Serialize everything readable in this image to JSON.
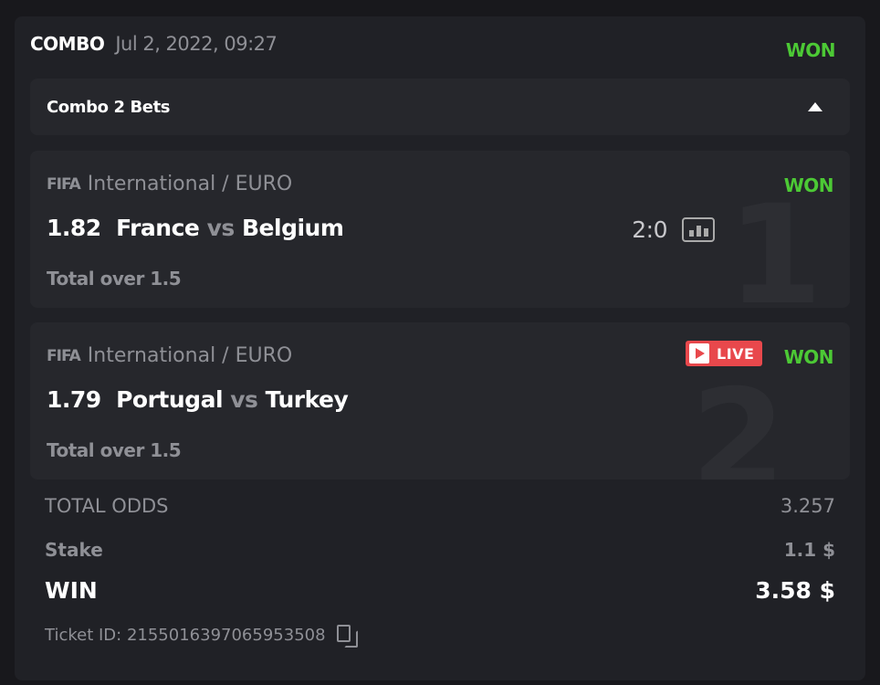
{
  "header": {
    "title": "COMBO",
    "date": "Jul 2, 2022, 09:27",
    "status": "WON"
  },
  "combo": {
    "label": "Combo 2 Bets"
  },
  "bets": [
    {
      "index": "1",
      "league": "International / EURO",
      "odds": "1.82",
      "home": "France",
      "vs": "vs",
      "away": "Belgium",
      "market": "Total over 1.5",
      "status": "WON",
      "score": "2:0"
    },
    {
      "index": "2",
      "league": "International / EURO",
      "odds": "1.79",
      "home": "Portugal",
      "vs": "vs",
      "away": "Turkey",
      "market": "Total over 1.5",
      "status": "WON",
      "live": "LIVE"
    }
  ],
  "sport_logo": "FIFA",
  "summary": {
    "total_odds_label": "TOTAL ODDS",
    "total_odds": "3.257",
    "stake_label": "Stake",
    "stake": "1.1 $",
    "win_label": "WIN",
    "win": "3.58 $",
    "ticket_label": "Ticket ID:",
    "ticket_id": "2155016397065953508"
  },
  "colors": {
    "won": "#4cc935",
    "live": "#e8484c"
  }
}
